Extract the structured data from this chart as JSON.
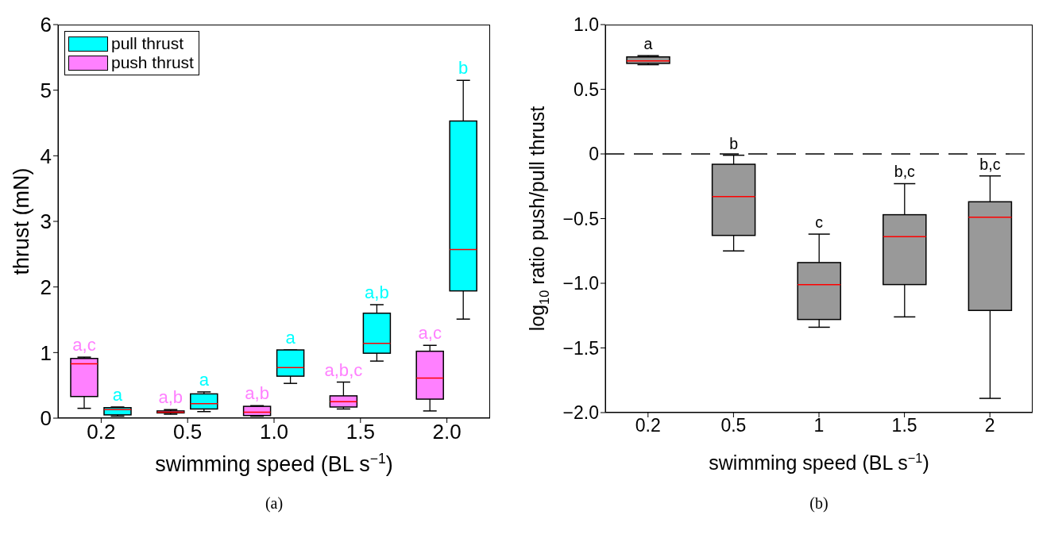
{
  "chart_data": [
    {
      "type": "box",
      "categories": [
        "0.2",
        "0.5",
        "1.0",
        "1.5",
        "2.0"
      ],
      "xlabel": "swimming speed (BL s$^{−1}$)",
      "ylabel": "thrust  (mN)",
      "ylim": [
        0,
        6
      ],
      "yticks": [
        0,
        1,
        2,
        3,
        4,
        5,
        6
      ],
      "grid": false,
      "legend": "top left",
      "series": [
        {
          "name": "push thrust",
          "color": "#ff80ff",
          "value_labels": [
            "a,c",
            "a,b",
            "a,b",
            "a,b,c",
            "a,c"
          ],
          "boxes": [
            {
              "low": 0.15,
              "q1": 0.33,
              "median": 0.83,
              "q3": 0.91,
              "high": 0.93
            },
            {
              "low": 0.06,
              "q1": 0.08,
              "median": 0.09,
              "q3": 0.11,
              "high": 0.13
            },
            {
              "low": 0.03,
              "q1": 0.04,
              "median": 0.09,
              "q3": 0.18,
              "high": 0.19
            },
            {
              "low": 0.14,
              "q1": 0.17,
              "median": 0.25,
              "q3": 0.34,
              "high": 0.55
            },
            {
              "low": 0.11,
              "q1": 0.29,
              "median": 0.61,
              "q3": 1.02,
              "high": 1.11
            }
          ]
        },
        {
          "name": "pull thrust",
          "color": "#00ffff",
          "value_labels": [
            "a",
            "a",
            "a",
            "a,b",
            "b"
          ],
          "boxes": [
            {
              "low": 0.03,
              "q1": 0.05,
              "median": 0.13,
              "q3": 0.16,
              "high": 0.17
            },
            {
              "low": 0.1,
              "q1": 0.14,
              "median": 0.22,
              "q3": 0.37,
              "high": 0.4
            },
            {
              "low": 0.53,
              "q1": 0.64,
              "median": 0.77,
              "q3": 1.04,
              "high": 1.04
            },
            {
              "low": 0.87,
              "q1": 0.99,
              "median": 1.14,
              "q3": 1.6,
              "high": 1.73
            },
            {
              "low": 1.51,
              "q1": 1.94,
              "median": 2.57,
              "q3": 4.53,
              "high": 5.15
            }
          ]
        }
      ],
      "annotations": [
        "(a)"
      ]
    },
    {
      "type": "box",
      "categories": [
        "0.2",
        "0.5",
        "1",
        "1.5",
        "2"
      ],
      "xlabel": "swimming speed (BL s$^{−1}$)",
      "ylabel": "log$_{10}$ ratio push/pull thrust",
      "ylim": [
        -2,
        1
      ],
      "yticks": [
        {
          "value": -2,
          "label": "−2.0"
        },
        {
          "value": -1.5,
          "label": "−1.5"
        },
        {
          "value": -1,
          "label": "−1.0"
        },
        {
          "value": -0.5,
          "label": "−0.5"
        },
        0,
        {
          "value": 0.5,
          "label": "0.5"
        },
        {
          "value": 1,
          "label": "1.0"
        }
      ],
      "grid": false,
      "series": [
        {
          "color": "#999999",
          "value_labels": [
            "a",
            "b",
            "c",
            "b,c",
            "b,c"
          ],
          "boxes": [
            {
              "low": 0.69,
              "q1": 0.7,
              "median": 0.72,
              "q3": 0.75,
              "high": 0.76
            },
            {
              "low": -0.75,
              "q1": -0.63,
              "median": -0.33,
              "q3": -0.08,
              "high": -0.01
            },
            {
              "low": -1.34,
              "q1": -1.28,
              "median": -1.01,
              "q3": -0.84,
              "high": -0.62
            },
            {
              "low": -1.26,
              "q1": -1.01,
              "median": -0.64,
              "q3": -0.47,
              "high": -0.23
            },
            {
              "low": -1.89,
              "q1": -1.21,
              "median": -0.49,
              "q3": -0.37,
              "high": -0.17
            }
          ]
        }
      ],
      "ref_lines": [
        {
          "axis": "y",
          "value": 0,
          "color": "#000000",
          "line_style": "dashed"
        }
      ],
      "annotations": [
        "(b)"
      ]
    }
  ]
}
